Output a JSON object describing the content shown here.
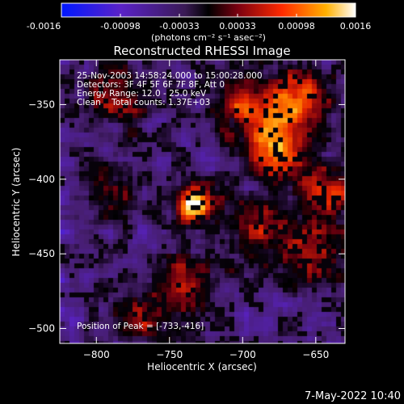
{
  "colorbar": {
    "ticks": [
      "-0.0016",
      "-0.00098",
      "-0.00033",
      "0.00033",
      "0.00098",
      "0.0016"
    ],
    "unit_label": "(photons cm⁻² s⁻¹ asec⁻²)",
    "range": [
      -0.0016,
      0.0016
    ]
  },
  "chart_data": {
    "type": "heatmap",
    "title": "Reconstructed RHESSI Image",
    "xlabel": "Heliocentric X (arcsec)",
    "ylabel": "Heliocentric Y (arcsec)",
    "xlim": [
      -825,
      -630
    ],
    "ylim": [
      -510,
      -320
    ],
    "x_ticks": [
      -800,
      -750,
      -700,
      -650
    ],
    "y_ticks": [
      -350,
      -400,
      -450,
      -500
    ],
    "x_tick_labels": [
      "−800",
      "−750",
      "−700",
      "−650"
    ],
    "y_tick_labels": [
      "−350",
      "−400",
      "−450",
      "−500"
    ],
    "annotations": [
      "25-Nov-2003 14:58:24.000 to 15:00:28.000",
      "Detectors: 3F 4F 5F 6F 7F 8F, Att 0",
      "Energy Range: 12.0 - 25.0 keV",
      "Clean    Total counts: 1.37E+03"
    ],
    "peak_label": "Position of Peak = [-733,-416]",
    "peak": [
      -733,
      -416
    ],
    "sources": [
      {
        "x": -733,
        "y": -416,
        "intensity": 1.0
      },
      {
        "x": -677,
        "y": -380,
        "intensity": 0.78
      },
      {
        "x": -663,
        "y": -348,
        "intensity": 0.72
      },
      {
        "x": -700,
        "y": -350,
        "intensity": 0.55
      },
      {
        "x": -785,
        "y": -345,
        "intensity": 0.45
      },
      {
        "x": -640,
        "y": -410,
        "intensity": 0.52
      },
      {
        "x": -655,
        "y": -450,
        "intensity": 0.45
      },
      {
        "x": -740,
        "y": -470,
        "intensity": 0.42
      },
      {
        "x": -770,
        "y": -495,
        "intensity": 0.38
      },
      {
        "x": -690,
        "y": -430,
        "intensity": 0.4
      },
      {
        "x": -790,
        "y": -410,
        "intensity": 0.35
      }
    ]
  },
  "footer": {
    "timestamp": "7-May-2022 10:40"
  }
}
